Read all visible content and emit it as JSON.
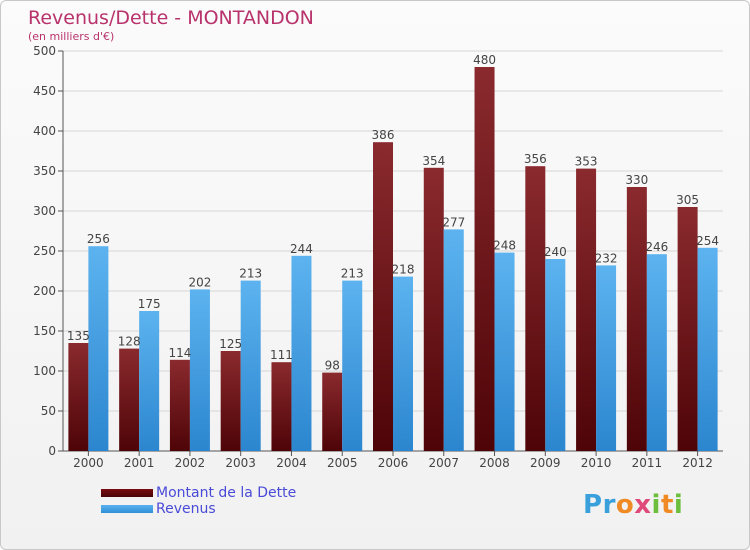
{
  "header": {
    "title": "Revenus/Dette - MONTANDON",
    "subtitle": "(en milliers d'€)"
  },
  "logo": {
    "text": "Proxiti"
  },
  "colors": {
    "title": "#b8326b",
    "dette": "#6e0a0e",
    "revenus": "#3d9fe4",
    "legend_text": "#4a4ad8"
  },
  "chart_data": {
    "type": "bar",
    "title": "Revenus/Dette - MONTANDON",
    "subtitle": "(en milliers d'€)",
    "categories": [
      "2000",
      "2001",
      "2002",
      "2003",
      "2004",
      "2005",
      "2006",
      "2007",
      "2008",
      "2009",
      "2010",
      "2011",
      "2012"
    ],
    "series": [
      {
        "name": "Montant de la Dette",
        "values": [
          135,
          128,
          114,
          125,
          111,
          98,
          386,
          354,
          480,
          356,
          353,
          330,
          305
        ]
      },
      {
        "name": "Revenus",
        "values": [
          256,
          175,
          202,
          213,
          244,
          213,
          218,
          277,
          248,
          240,
          232,
          246,
          254
        ]
      }
    ],
    "ylim": [
      0,
      500
    ],
    "yticks": [
      0,
      50,
      100,
      150,
      200,
      250,
      300,
      350,
      400,
      450,
      500
    ],
    "grid": true,
    "legend_position": "bottom-left"
  }
}
